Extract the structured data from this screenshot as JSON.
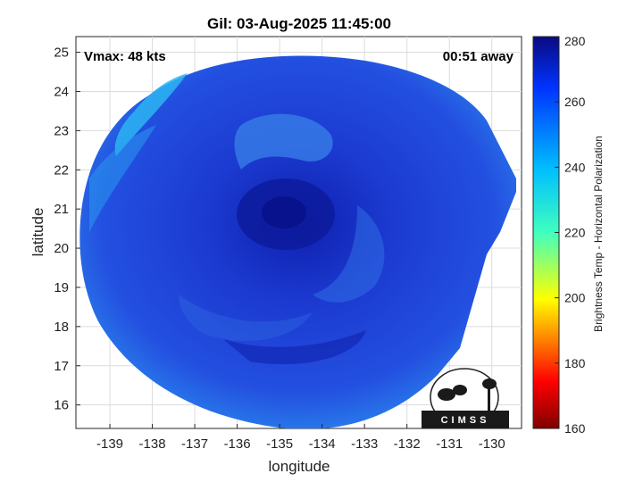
{
  "title": "Gil: 03-Aug-2025 11:45:00",
  "vmax": "Vmax: 48 kts",
  "time_away": "00:51 away",
  "xlabel": "longitude",
  "ylabel": "latitude",
  "x_ticks": [
    "-139",
    "-138",
    "-137",
    "-136",
    "-135",
    "-134",
    "-133",
    "-132",
    "-131",
    "-130"
  ],
  "y_ticks": [
    "25",
    "24",
    "23",
    "22",
    "21",
    "20",
    "19",
    "18",
    "17",
    "16"
  ],
  "colorbar": {
    "label": "Brightness Temp - Horizontal Polarization",
    "ticks": [
      "280",
      "260",
      "240",
      "220",
      "200",
      "180",
      "160"
    ],
    "range": [
      160,
      280
    ]
  },
  "logo_text": "CIMSS",
  "colors": {
    "background_swath": "#1e3fd8",
    "cold_core": "#0a1a9c",
    "warm_edge": "#2aa3f0"
  },
  "chart_data": {
    "type": "heatmap",
    "title": "Gil: 03-Aug-2025 11:45:00",
    "xlabel": "longitude",
    "ylabel": "latitude",
    "xlim": [
      -139.8,
      -129.3
    ],
    "ylim": [
      15.4,
      25.4
    ],
    "colorbar_range": [
      160,
      280
    ],
    "colorbar_label": "Brightness Temp - Horizontal Polarization"
  }
}
